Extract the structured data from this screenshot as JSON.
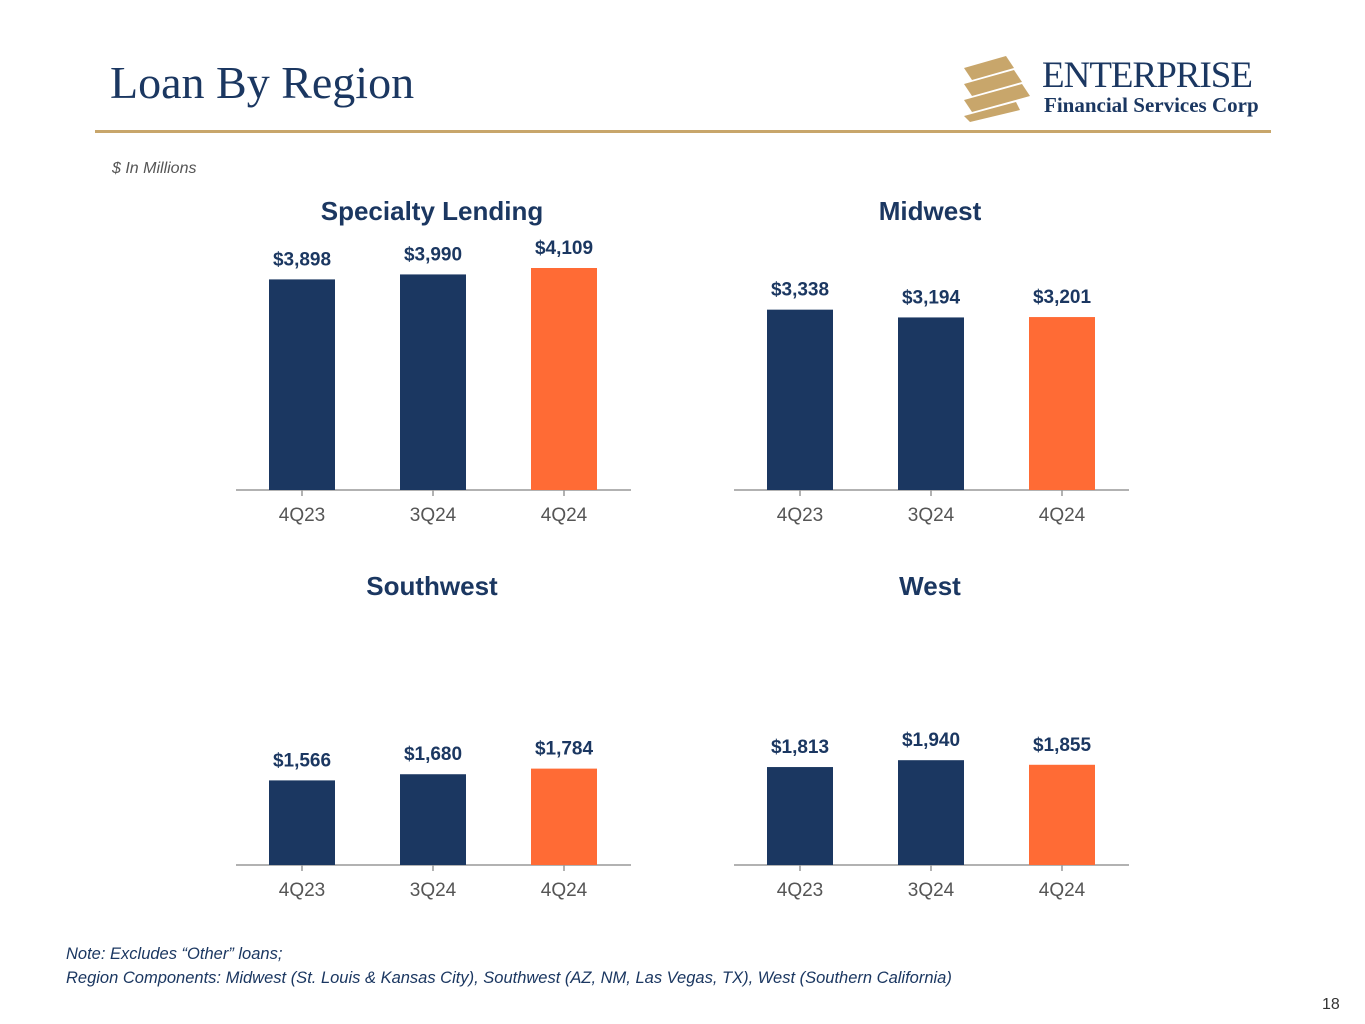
{
  "page": {
    "title": "Loan By Region",
    "unit_note": "$ In Millions",
    "page_number": "18",
    "notes": [
      "Note: Excludes “Other” loans;",
      "Region Components: Midwest (St. Louis & Kansas City), Southwest (AZ, NM, Las Vegas, TX), West (Southern California)"
    ]
  },
  "logo": {
    "name": "ENTERPRISE",
    "subtitle": "Financial Services Corp",
    "registered": "®"
  },
  "colors": {
    "navy": "#1b3761",
    "orange": "#ff6b35",
    "gold": "#c8a66b",
    "axis": "#999999"
  },
  "chart_data": [
    {
      "type": "bar",
      "title": "Specialty Lending",
      "categories": [
        "4Q23",
        "3Q24",
        "4Q24"
      ],
      "values": [
        3898,
        3990,
        4109
      ],
      "labels": [
        "$3,898",
        "$3,990",
        "$4,109"
      ],
      "highlight_last": true
    },
    {
      "type": "bar",
      "title": "Midwest",
      "categories": [
        "4Q23",
        "3Q24",
        "4Q24"
      ],
      "values": [
        3338,
        3194,
        3201
      ],
      "labels": [
        "$3,338",
        "$3,194",
        "$3,201"
      ],
      "highlight_last": true
    },
    {
      "type": "bar",
      "title": "Southwest",
      "categories": [
        "4Q23",
        "3Q24",
        "4Q24"
      ],
      "values": [
        1566,
        1680,
        1784
      ],
      "labels": [
        "$1,566",
        "$1,680",
        "$1,784"
      ],
      "highlight_last": true
    },
    {
      "type": "bar",
      "title": "West",
      "categories": [
        "4Q23",
        "3Q24",
        "4Q24"
      ],
      "values": [
        1813,
        1940,
        1855
      ],
      "labels": [
        "$1,813",
        "$1,940",
        "$1,855"
      ],
      "highlight_last": true
    }
  ]
}
